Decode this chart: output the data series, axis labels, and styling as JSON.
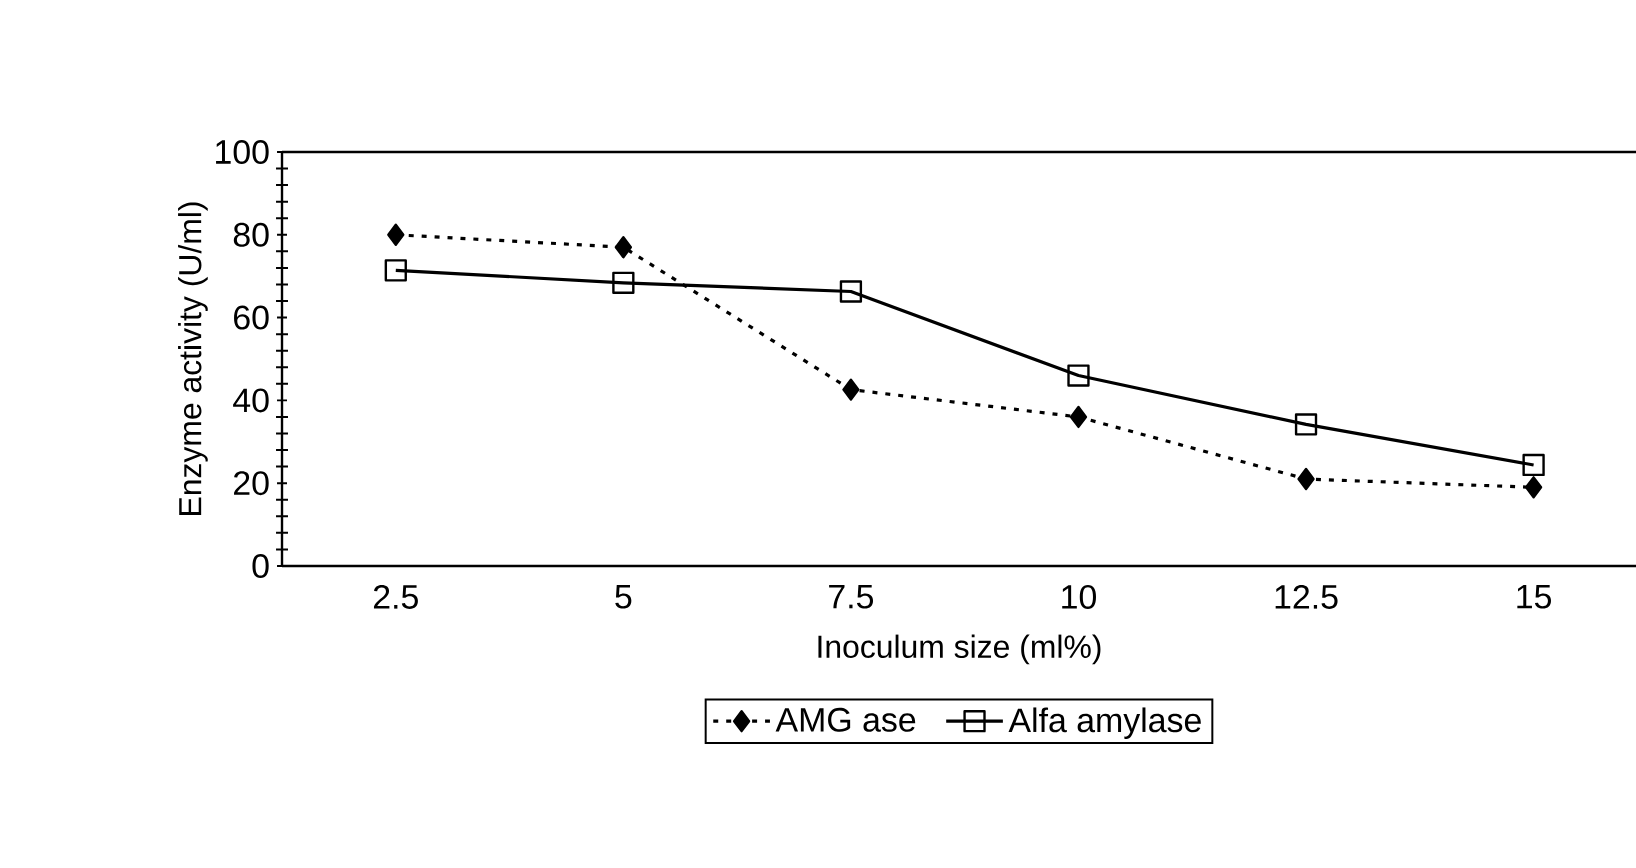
{
  "chart_data": {
    "type": "line",
    "xlabel": "Inoculum size (ml%)",
    "ylabel": "Enzyme activity (U/ml)",
    "categories": [
      "2.5",
      "5",
      "7.5",
      "10",
      "12.5",
      "15"
    ],
    "series": [
      {
        "name": "AMG ase",
        "color": "#000000",
        "marker": "diamond",
        "line_style": "dotted",
        "values": [
          80,
          77,
          42.6,
          36,
          21,
          19
        ]
      },
      {
        "name": "Alfa amylase",
        "color": "#000000",
        "marker": "square",
        "line_style": "solid",
        "values": [
          71.4,
          68.4,
          66.3,
          46,
          34.2,
          24.4
        ]
      }
    ],
    "ylim": [
      0,
      100
    ],
    "yticks": [
      0,
      20,
      40,
      60,
      80,
      100
    ],
    "grid": false,
    "legend": "bottom"
  }
}
